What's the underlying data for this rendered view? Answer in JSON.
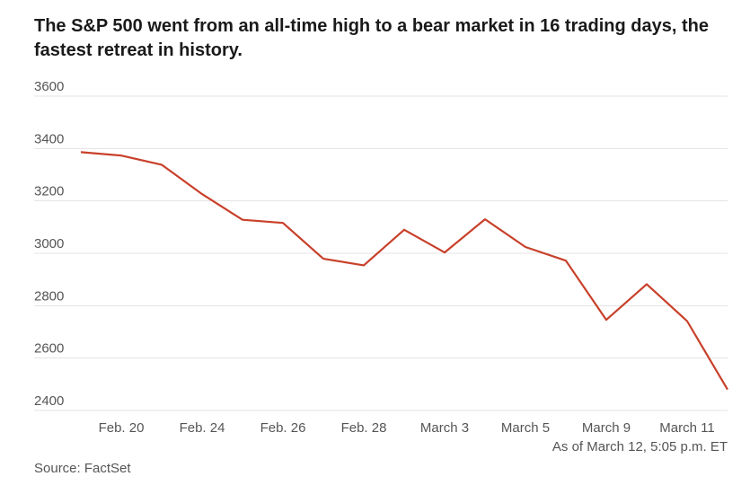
{
  "chart_data": {
    "type": "line",
    "title": "The S&P 500 went from an all-time high to a bear market in 16 trading days, the fastest retreat in history.",
    "xlabel": "",
    "ylabel": "",
    "ylim": [
      2400,
      3600
    ],
    "yticks": [
      2400,
      2600,
      2800,
      3000,
      3200,
      3400,
      3600
    ],
    "grid": "horizontal",
    "legend": "none",
    "xtick_labels": [
      "Feb. 20",
      "Feb. 24",
      "Feb. 26",
      "Feb. 28",
      "March 3",
      "March 5",
      "March 9",
      "March 11"
    ],
    "xtick_index": [
      1,
      3,
      5,
      7,
      9,
      11,
      13,
      15
    ],
    "series": [
      {
        "name": "",
        "color": "#c8402a",
        "values": [
          3386,
          3373,
          3338,
          3226,
          3128,
          3116,
          2979,
          2954,
          3090,
          3003,
          3130,
          3024,
          2972,
          2746,
          2882,
          2741,
          2480
        ]
      }
    ]
  },
  "note": "As of March 12, 5:05 p.m. ET",
  "source": "Source: FactSet",
  "colors": {
    "line": "#c8402a",
    "grid": "#e3e3e3",
    "axis_text": "#555555"
  }
}
